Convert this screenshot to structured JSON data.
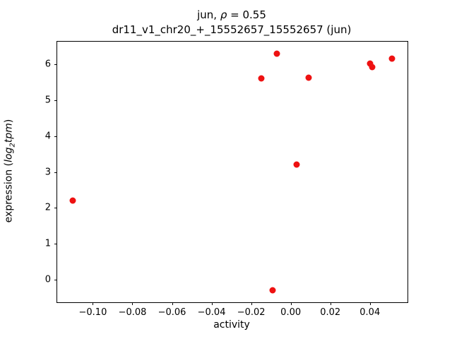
{
  "title": {
    "line1_prefix": "jun, ",
    "line1_rho": "ρ",
    "line1_suffix": " = 0.55",
    "line2": "dr11_v1_chr20_+_15552657_15552657 (jun)"
  },
  "labels": {
    "xlabel": "activity",
    "ylabel_prefix": "expression (",
    "ylabel_log": "log",
    "ylabel_sub": "2",
    "ylabel_tpm": "tpm",
    "ylabel_suffix": ")"
  },
  "chart_data": {
    "type": "scatter",
    "title": "jun, ρ = 0.55 — dr11_v1_chr20_+_15552657_15552657 (jun)",
    "xlabel": "activity",
    "ylabel": "expression (log2 tpm)",
    "xlim": [
      -0.118,
      0.059
    ],
    "ylim": [
      -0.63,
      6.63
    ],
    "grid": false,
    "legend": "none",
    "marker_color": "#ee1111",
    "xticks": [
      {
        "v": -0.1,
        "label": "−0.10"
      },
      {
        "v": -0.08,
        "label": "−0.08"
      },
      {
        "v": -0.06,
        "label": "−0.06"
      },
      {
        "v": -0.04,
        "label": "−0.04"
      },
      {
        "v": -0.02,
        "label": "−0.02"
      },
      {
        "v": 0.0,
        "label": "0.00"
      },
      {
        "v": 0.02,
        "label": "0.02"
      },
      {
        "v": 0.04,
        "label": "0.04"
      }
    ],
    "yticks": [
      {
        "v": 0,
        "label": "0"
      },
      {
        "v": 1,
        "label": "1"
      },
      {
        "v": 2,
        "label": "2"
      },
      {
        "v": 3,
        "label": "3"
      },
      {
        "v": 4,
        "label": "4"
      },
      {
        "v": 5,
        "label": "5"
      },
      {
        "v": 6,
        "label": "6"
      }
    ],
    "points": [
      {
        "x": -0.11,
        "y": 2.2
      },
      {
        "x": -0.015,
        "y": 5.6
      },
      {
        "x": -0.009,
        "y": -0.3
      },
      {
        "x": -0.007,
        "y": 6.3
      },
      {
        "x": 0.003,
        "y": 3.2
      },
      {
        "x": 0.009,
        "y": 5.62
      },
      {
        "x": 0.04,
        "y": 6.02
      },
      {
        "x": 0.041,
        "y": 5.92
      },
      {
        "x": 0.051,
        "y": 6.15
      }
    ]
  }
}
